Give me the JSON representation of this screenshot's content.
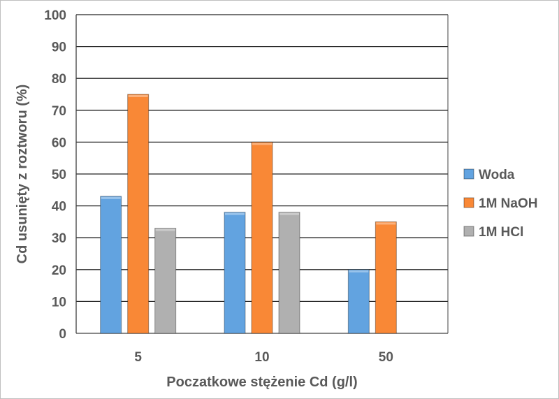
{
  "chart_data": {
    "type": "bar",
    "title": "",
    "xlabel": "Poczatkowe stężenie Cd (g/l)",
    "ylabel": "Cd usunięty z roztworu (%)",
    "categories": [
      "5",
      "10",
      "50"
    ],
    "ylim": [
      0,
      100
    ],
    "yticks": [
      0,
      10,
      20,
      30,
      40,
      50,
      60,
      70,
      80,
      90,
      100
    ],
    "grid": true,
    "legend_position": "right",
    "series": [
      {
        "name": "Woda",
        "values": [
          43,
          38,
          20
        ],
        "color": "#62a3e0"
      },
      {
        "name": "1M NaOH",
        "values": [
          75,
          60,
          35
        ],
        "color": "#f98836"
      },
      {
        "name": "1M HCl",
        "values": [
          33,
          38,
          null
        ],
        "color": "#b0b0b0"
      }
    ]
  }
}
